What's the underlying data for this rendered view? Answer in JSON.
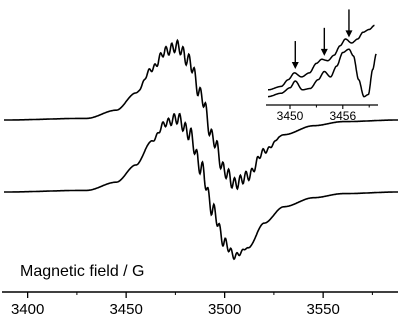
{
  "chart_data": [
    {
      "type": "line",
      "title": "",
      "xlabel": "Magnetic field / G",
      "ylabel": "",
      "xlim": [
        3388,
        3588
      ],
      "xticks": [
        3400,
        3450,
        3500,
        3550
      ],
      "yticks_shown": false,
      "grid": false,
      "legend": "none",
      "series": [
        {
          "name": "",
          "offset": "upper",
          "base_x": [
            3388,
            3430,
            3445,
            3455,
            3463,
            3470,
            3476,
            3482,
            3488,
            3494,
            3500,
            3505,
            3512,
            3520,
            3530,
            3545,
            3560,
            3588
          ],
          "base_y": [
            0,
            0.02,
            0.12,
            0.33,
            0.62,
            0.84,
            0.9,
            0.72,
            0.3,
            -0.22,
            -0.62,
            -0.78,
            -0.68,
            -0.38,
            -0.18,
            -0.07,
            -0.02,
            0
          ],
          "ripple_amplitude": 0.09,
          "ripple_spacing_G": 2.9,
          "ripple_range": [
            3455,
            3528
          ]
        },
        {
          "name": "",
          "offset": "lower",
          "base_x": [
            3388,
            3430,
            3445,
            3455,
            3463,
            3470,
            3476,
            3482,
            3488,
            3494,
            3500,
            3505,
            3512,
            3520,
            3530,
            3545,
            3560,
            3588
          ],
          "base_y": [
            0,
            0.02,
            0.12,
            0.33,
            0.62,
            0.84,
            0.9,
            0.72,
            0.3,
            -0.22,
            -0.62,
            -0.78,
            -0.68,
            -0.38,
            -0.18,
            -0.07,
            -0.02,
            0
          ],
          "ripple_amplitude": 0.09,
          "ripple_spacing_G": 2.9,
          "ripple_range": [
            3462,
            3512
          ]
        }
      ]
    },
    {
      "type": "line",
      "title": "",
      "xlabel": "",
      "ylabel": "",
      "xlim": [
        3447.5,
        3460
      ],
      "xticks": [
        3450,
        3456
      ],
      "grid": false,
      "legend": "none",
      "series": [
        {
          "name": "",
          "x": [
            3447.5,
            3449.0,
            3449.8,
            3450.5,
            3451.3,
            3452.2,
            3453.0,
            3453.6,
            3454.3,
            3455.0,
            3455.7,
            3456.3,
            3457.0,
            3457.7,
            3458.3,
            3459.0,
            3459.6
          ],
          "y": [
            0.05,
            0.1,
            0.2,
            0.3,
            0.24,
            0.3,
            0.44,
            0.5,
            0.48,
            0.56,
            0.7,
            0.8,
            0.74,
            0.8,
            0.9,
            0.94,
            1.0
          ]
        },
        {
          "name": "",
          "x": [
            3447.5,
            3449.0,
            3450.0,
            3450.6,
            3451.4,
            3452.3,
            3453.2,
            3453.9,
            3454.6,
            3455.3,
            3456.0,
            3456.7,
            3457.2,
            3457.8,
            3458.4,
            3458.9,
            3459.4,
            3459.8
          ],
          "y": [
            -0.05,
            0.0,
            0.08,
            0.18,
            0.05,
            0.07,
            0.2,
            0.32,
            0.24,
            0.4,
            0.6,
            0.65,
            0.55,
            0.2,
            -0.05,
            -0.02,
            0.35,
            0.58
          ]
        }
      ],
      "annotations": [
        {
          "type": "arrow",
          "x": 3450.6,
          "points": "down"
        },
        {
          "type": "arrow",
          "x": 3453.9,
          "points": "down"
        },
        {
          "type": "arrow",
          "x": 3456.7,
          "points": "down"
        }
      ]
    }
  ]
}
